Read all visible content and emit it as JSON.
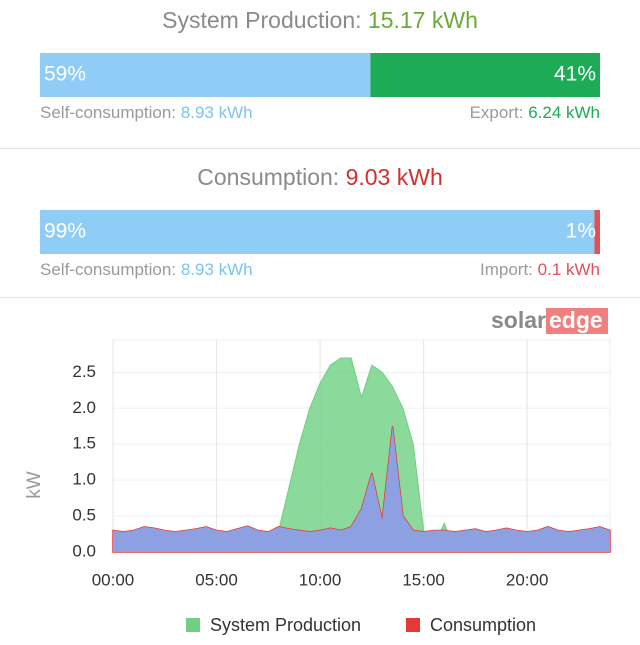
{
  "production": {
    "title": "System Production:",
    "total": "15.17 kWh",
    "shares": [
      {
        "value": 59,
        "label": "59%"
      },
      {
        "value": 41,
        "label": "41%"
      }
    ],
    "left_label": "Self-consumption:",
    "left_value": "8.93 kWh",
    "right_label": "Export:",
    "right_value": "6.24 kWh",
    "colors": [
      "#8fcdf7",
      "#1eab57"
    ]
  },
  "consumption": {
    "title": "Consumption:",
    "total": "9.03 kWh",
    "shares": [
      {
        "value": 99,
        "label": "99%"
      },
      {
        "value": 1,
        "label": "1%"
      }
    ],
    "left_label": "Self-consumption:",
    "left_value": "8.93 kWh",
    "right_label": "Import:",
    "right_value": "0.1 kWh",
    "colors": [
      "#8fcdf7",
      "#e0505a"
    ]
  },
  "logo": {
    "left": "solar",
    "right": "edge"
  },
  "chart_data": {
    "type": "area",
    "y_label": "kW",
    "x": [
      0,
      0.5,
      1,
      1.5,
      2,
      2.5,
      3,
      3.5,
      4,
      4.5,
      5,
      5.5,
      6,
      6.5,
      7,
      7.5,
      8,
      8.5,
      9,
      9.5,
      10,
      10.5,
      11,
      11.5,
      12,
      12.5,
      13,
      13.5,
      14,
      14.5,
      15,
      15.5,
      16,
      16.5,
      17,
      17.5,
      18,
      18.5,
      19,
      19.5,
      20,
      20.5,
      21,
      21.5,
      22,
      22.5,
      23,
      23.5,
      24
    ],
    "xlim": [
      0,
      24
    ],
    "xticks": [
      {
        "value": 0,
        "label": "00:00"
      },
      {
        "value": 5,
        "label": "05:00"
      },
      {
        "value": 10,
        "label": "10:00"
      },
      {
        "value": 15,
        "label": "15:00"
      },
      {
        "value": 20,
        "label": "20:00"
      }
    ],
    "ylim": [
      0,
      2.95
    ],
    "yticks": [
      {
        "value": 0,
        "label": "0.0"
      },
      0.5,
      {
        "value": 1,
        "label": "1.0"
      },
      1.5,
      {
        "value": 2,
        "label": "2.0"
      },
      2.5
    ],
    "grid": true,
    "overlap_color": "#8ca0e2",
    "series": [
      {
        "name": "System Production",
        "color": "#6fcf83",
        "values": [
          0,
          0,
          0,
          0,
          0,
          0,
          0,
          0,
          0,
          0,
          0,
          0,
          0,
          0,
          0,
          0,
          0.3,
          0.9,
          1.5,
          2.0,
          2.35,
          2.6,
          2.7,
          2.7,
          2.15,
          2.6,
          2.5,
          2.3,
          2.0,
          1.5,
          0.3,
          0.1,
          0.4,
          0,
          0,
          0,
          0,
          0,
          0,
          0,
          0,
          0,
          0,
          0,
          0,
          0,
          0,
          0,
          0
        ]
      },
      {
        "name": "Consumption",
        "color": "#e53935",
        "values": [
          0.3,
          0.28,
          0.3,
          0.35,
          0.33,
          0.3,
          0.28,
          0.3,
          0.32,
          0.35,
          0.3,
          0.28,
          0.32,
          0.36,
          0.3,
          0.28,
          0.35,
          0.32,
          0.3,
          0.28,
          0.3,
          0.33,
          0.3,
          0.35,
          0.6,
          1.1,
          0.45,
          1.75,
          0.5,
          0.3,
          0.28,
          0.3,
          0.3,
          0.28,
          0.3,
          0.32,
          0.28,
          0.3,
          0.33,
          0.3,
          0.28,
          0.3,
          0.35,
          0.3,
          0.28,
          0.3,
          0.32,
          0.35,
          0.3
        ]
      }
    ]
  }
}
